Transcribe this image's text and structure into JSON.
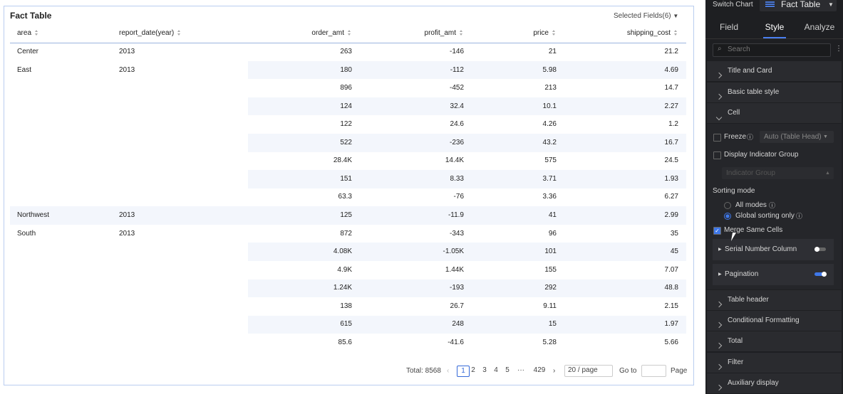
{
  "card": {
    "title": "Fact Table",
    "selected_fields": "Selected Fields(6)"
  },
  "table": {
    "columns": [
      "area",
      "report_date(year)",
      "order_amt",
      "profit_amt",
      "price",
      "shipping_cost"
    ],
    "rows": [
      [
        "Center",
        "2013",
        "263",
        "-146",
        "21",
        "21.2"
      ],
      [
        "East",
        "2013",
        "180",
        "-112",
        "5.98",
        "4.69"
      ],
      [
        null,
        null,
        "896",
        "-452",
        "213",
        "14.7"
      ],
      [
        null,
        null,
        "124",
        "32.4",
        "10.1",
        "2.27"
      ],
      [
        null,
        null,
        "122",
        "24.6",
        "4.26",
        "1.2"
      ],
      [
        null,
        null,
        "522",
        "-236",
        "43.2",
        "16.7"
      ],
      [
        null,
        null,
        "28.4K",
        "14.4K",
        "575",
        "24.5"
      ],
      [
        null,
        null,
        "151",
        "8.33",
        "3.71",
        "1.93"
      ],
      [
        null,
        null,
        "63.3",
        "-76",
        "3.36",
        "6.27"
      ],
      [
        "Northwest",
        "2013",
        "125",
        "-11.9",
        "41",
        "2.99"
      ],
      [
        "South",
        "2013",
        "872",
        "-343",
        "96",
        "35"
      ],
      [
        null,
        null,
        "4.08K",
        "-1.05K",
        "101",
        "45"
      ],
      [
        null,
        null,
        "4.9K",
        "1.44K",
        "155",
        "7.07"
      ],
      [
        null,
        null,
        "1.24K",
        "-193",
        "292",
        "48.8"
      ],
      [
        null,
        null,
        "138",
        "26.7",
        "9.11",
        "2.15"
      ],
      [
        null,
        null,
        "615",
        "248",
        "15",
        "1.97"
      ],
      [
        null,
        null,
        "85.6",
        "-41.6",
        "5.28",
        "5.66"
      ]
    ]
  },
  "pagination": {
    "total": "Total: 8568",
    "pages": [
      "1",
      "2",
      "3",
      "4",
      "5",
      "···",
      "429"
    ],
    "page_size": "20 / page",
    "goto": "Go to",
    "page": "Page"
  },
  "panel": {
    "switch_chart": "Switch Chart",
    "chart_name": "Fact Table",
    "tabs": [
      "Field",
      "Style",
      "Analyze"
    ],
    "search": "Search",
    "sections_top": [
      "Title and Card",
      "Basic table style",
      "Cell"
    ],
    "cell": {
      "freeze": "Freeze",
      "freeze_option": "Auto (Table Head)",
      "display_indicator_group": "Display Indicator Group",
      "indicator_group": "Indicator Group",
      "sorting_mode": "Sorting mode",
      "sort_options": [
        "All modes",
        "Global sorting only"
      ],
      "merge_same_cells": "Merge Same Cells",
      "serial_number_column": "Serial Number Column",
      "pagination": "Pagination"
    },
    "sections_bottom": [
      "Table header",
      "Conditional Formatting",
      "Total",
      "Filter",
      "Auxiliary display"
    ]
  }
}
